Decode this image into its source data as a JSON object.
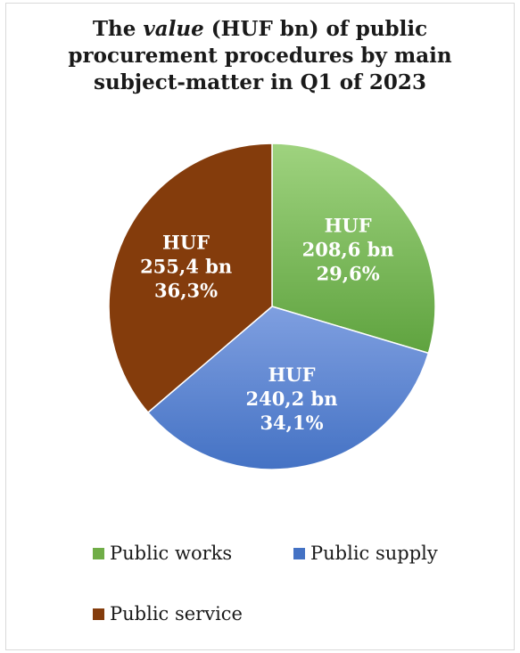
{
  "chart_data": {
    "type": "pie",
    "title_parts": [
      "The ",
      "value",
      " (HUF bn) of public",
      "procurement procedures by main",
      "subject-matter in Q1 of 2023"
    ],
    "slices": [
      {
        "name": "Public works",
        "value": 208.6,
        "label_lines": [
          "HUF",
          "208,6 bn",
          "29,6%"
        ],
        "color": "#5fa33f",
        "color_light": "#9fd37f"
      },
      {
        "name": "Public supply",
        "value": 240.2,
        "label_lines": [
          "HUF",
          "240,2 bn",
          "34,1%"
        ],
        "color": "#4472c4",
        "color_light": "#7f9fe0"
      },
      {
        "name": "Public service",
        "value": 255.4,
        "label_lines": [
          "HUF",
          "255,4 bn",
          "36,3%"
        ],
        "color": "#843c0c",
        "color_light": "#843c0c"
      }
    ],
    "legend": [
      "Public works",
      "Public supply",
      "Public service"
    ],
    "legend_position": "bottom"
  }
}
